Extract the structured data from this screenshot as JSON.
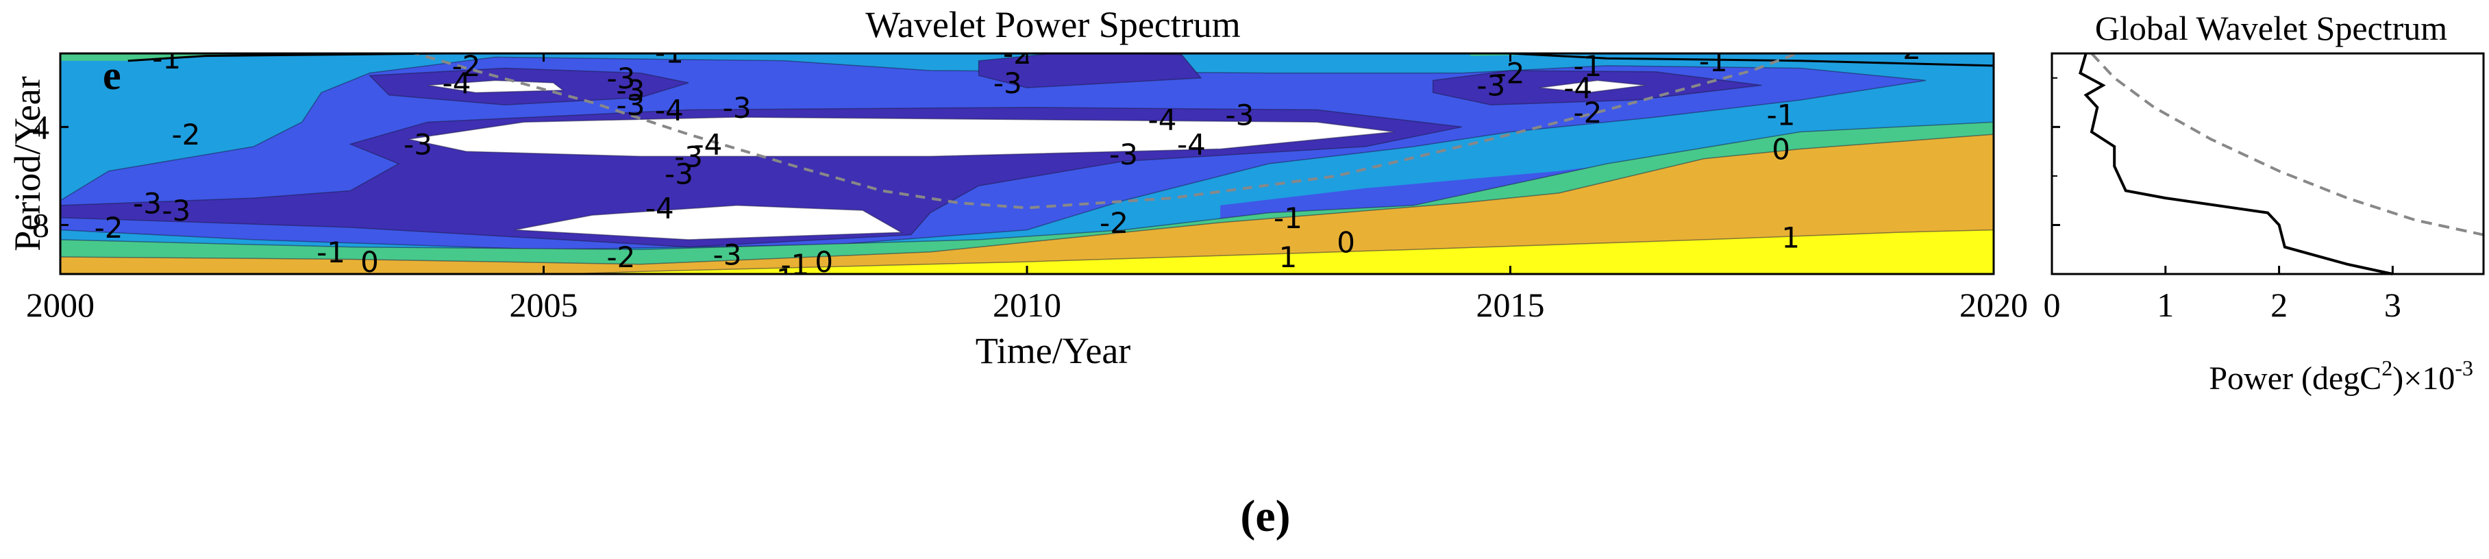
{
  "panel_tag": "e",
  "caption": "(e)",
  "colors": {
    "level_-4": "#ffffff",
    "level_-3": "#3f2fb3",
    "level_-2": "#3f58e8",
    "level_-1": "#1e9fe0",
    "level_0": "#47c98b",
    "level_1": "#e8b135",
    "level_2": "#ffff17",
    "coi": "#888888",
    "contour": "#000000"
  },
  "chart_data": [
    {
      "type": "heatmap",
      "title": "Wavelet Power Spectrum",
      "xlabel": "Time/Year",
      "ylabel": "Period/Year",
      "xlim": [
        2000,
        2020
      ],
      "ylim": [
        1,
        10
      ],
      "y_reversed": true,
      "x_ticks": [
        "2000",
        "2005",
        "2010",
        "2015",
        "2020"
      ],
      "y_ticks": [
        "4",
        "8"
      ],
      "contour_levels": [
        -4,
        -3,
        -2,
        -1,
        0,
        1
      ],
      "contour_labels": [
        {
          "text": "-1",
          "x": 2001.1,
          "y": 1.3
        },
        {
          "text": "-1",
          "x": 2006.3,
          "y": 1.05
        },
        {
          "text": "-2",
          "x": 2009.9,
          "y": 1.1
        },
        {
          "text": "-3",
          "x": 2009.8,
          "y": 2.3
        },
        {
          "text": "-2",
          "x": 2019.1,
          "y": 0.9
        },
        {
          "text": "-1",
          "x": 2017.1,
          "y": 1.4
        },
        {
          "text": "-1",
          "x": 2015.8,
          "y": 1.6
        },
        {
          "text": "-2",
          "x": 2015.0,
          "y": 1.9
        },
        {
          "text": "-3",
          "x": 2014.8,
          "y": 2.4
        },
        {
          "text": "-4",
          "x": 2015.7,
          "y": 2.5
        },
        {
          "text": "-2",
          "x": 2015.8,
          "y": 3.5
        },
        {
          "text": "-1",
          "x": 2017.8,
          "y": 3.6
        },
        {
          "text": "0",
          "x": 2017.8,
          "y": 5.0
        },
        {
          "text": "1",
          "x": 2017.9,
          "y": 8.6
        },
        {
          "text": "-2",
          "x": 2004.2,
          "y": 1.6
        },
        {
          "text": "-4",
          "x": 2004.1,
          "y": 2.3
        },
        {
          "text": "-3",
          "x": 2005.8,
          "y": 2.1
        },
        {
          "text": "-3",
          "x": 2005.9,
          "y": 2.6
        },
        {
          "text": "-3",
          "x": 2005.9,
          "y": 3.2
        },
        {
          "text": "-4",
          "x": 2006.3,
          "y": 3.4
        },
        {
          "text": "-3",
          "x": 2007.0,
          "y": 3.3
        },
        {
          "text": "-2",
          "x": 2001.3,
          "y": 4.4
        },
        {
          "text": "-3",
          "x": 2003.7,
          "y": 4.8
        },
        {
          "text": "-4",
          "x": 2006.7,
          "y": 4.8
        },
        {
          "text": "-3",
          "x": 2006.5,
          "y": 5.3
        },
        {
          "text": "-3",
          "x": 2006.4,
          "y": 6.0
        },
        {
          "text": "-4",
          "x": 2011.4,
          "y": 3.8
        },
        {
          "text": "-3",
          "x": 2012.2,
          "y": 3.6
        },
        {
          "text": "-4",
          "x": 2011.7,
          "y": 4.8
        },
        {
          "text": "-3",
          "x": 2011.0,
          "y": 5.2
        },
        {
          "text": "-3",
          "x": 2000.9,
          "y": 7.2
        },
        {
          "text": "-3",
          "x": 2001.2,
          "y": 7.5
        },
        {
          "text": "-2",
          "x": 2000.5,
          "y": 8.2
        },
        {
          "text": "-4",
          "x": 2006.2,
          "y": 7.4
        },
        {
          "text": "-2",
          "x": 2010.9,
          "y": 8.0
        },
        {
          "text": "-1",
          "x": 2002.8,
          "y": 9.2
        },
        {
          "text": "0",
          "x": 2003.2,
          "y": 9.6
        },
        {
          "text": "-2",
          "x": 2005.8,
          "y": 9.4
        },
        {
          "text": "-3",
          "x": 2006.9,
          "y": 9.3
        },
        {
          "text": "-1",
          "x": 2007.6,
          "y": 9.7
        },
        {
          "text": "0",
          "x": 2007.9,
          "y": 9.6
        },
        {
          "text": "1",
          "x": 2007.5,
          "y": 10.3
        },
        {
          "text": "-1",
          "x": 2012.7,
          "y": 7.8
        },
        {
          "text": "0",
          "x": 2013.3,
          "y": 8.8
        },
        {
          "text": "1",
          "x": 2012.7,
          "y": 9.4
        }
      ],
      "coi": {
        "x": [
          2002.8,
          2004.2,
          2005.5,
          2006.5,
          2007.6,
          2008.5,
          2009.3,
          2010.0,
          2011.5,
          2013.2,
          2014.8,
          2016.0,
          2017.5,
          2018.3
        ],
        "y": [
          0.0,
          1.6,
          3.0,
          4.3,
          5.6,
          6.6,
          7.1,
          7.3,
          6.9,
          6.0,
          4.5,
          3.3,
          1.7,
          0.5
        ]
      },
      "regions": [
        {
          "level": -1,
          "poly": [
            [
              2000,
              1.2
            ],
            [
              2000.5,
              0.9
            ],
            [
              2004.0,
              0.7
            ],
            [
              2008.0,
              0.25
            ],
            [
              2015.0,
              0.3
            ],
            [
              2018.5,
              0.3
            ],
            [
              2020,
              0.25
            ],
            [
              2020,
              3.8
            ],
            [
              2018.0,
              4.6
            ],
            [
              2015.5,
              5.8
            ],
            [
              2013.5,
              6.5
            ],
            [
              2012.0,
              7.2
            ],
            [
              2012.0,
              10.3
            ],
            [
              2000,
              10.3
            ]
          ]
        },
        {
          "level": -2,
          "poly": [
            [
              2000,
              7.0
            ],
            [
              2000.5,
              5.8
            ],
            [
              2002.0,
              4.8
            ],
            [
              2002.5,
              3.8
            ],
            [
              2002.7,
              2.6
            ],
            [
              2003.2,
              1.8
            ],
            [
              2004.5,
              1.15
            ],
            [
              2007.5,
              1.3
            ],
            [
              2009.0,
              1.7
            ],
            [
              2012.5,
              1.8
            ],
            [
              2014.5,
              1.8
            ],
            [
              2016.0,
              1.5
            ],
            [
              2018.0,
              1.6
            ],
            [
              2019.3,
              2.1
            ],
            [
              2018.0,
              2.9
            ],
            [
              2016.5,
              3.6
            ],
            [
              2015.0,
              4.2
            ],
            [
              2014.0,
              4.8
            ],
            [
              2012.5,
              5.5
            ],
            [
              2011.0,
              7.0
            ],
            [
              2010.0,
              8.2
            ],
            [
              2008.0,
              8.8
            ],
            [
              2005.0,
              9.0
            ],
            [
              2002.0,
              8.6
            ],
            [
              2000,
              8.2
            ]
          ]
        },
        {
          "level": -3,
          "poly": [
            [
              2000,
              7.2
            ],
            [
              2002.0,
              6.9
            ],
            [
              2003.0,
              6.6
            ],
            [
              2003.5,
              5.5
            ],
            [
              2003.0,
              4.7
            ],
            [
              2003.8,
              3.8
            ],
            [
              2006.5,
              3.3
            ],
            [
              2010.0,
              3.2
            ],
            [
              2013.0,
              3.3
            ],
            [
              2014.5,
              4.0
            ],
            [
              2013.5,
              4.8
            ],
            [
              2011.0,
              5.4
            ],
            [
              2009.5,
              6.4
            ],
            [
              2009.0,
              7.5
            ],
            [
              2008.8,
              8.4
            ],
            [
              2006.5,
              8.9
            ],
            [
              2003.0,
              8.1
            ],
            [
              2000,
              7.7
            ]
          ]
        },
        {
          "level": -3,
          "poly": [
            [
              2003.2,
              1.9
            ],
            [
              2004.6,
              1.6
            ],
            [
              2006.0,
              1.8
            ],
            [
              2006.5,
              2.2
            ],
            [
              2006.0,
              2.8
            ],
            [
              2004.6,
              3.1
            ],
            [
              2003.4,
              2.7
            ]
          ]
        },
        {
          "level": -3,
          "poly": [
            [
              2014.2,
              2.1
            ],
            [
              2015.0,
              1.7
            ],
            [
              2016.5,
              1.75
            ],
            [
              2017.6,
              2.3
            ],
            [
              2016.3,
              2.9
            ],
            [
              2014.8,
              3.1
            ],
            [
              2014.2,
              2.6
            ]
          ]
        },
        {
          "level": -3,
          "poly": [
            [
              2009.5,
              1.3
            ],
            [
              2010.4,
              0.95
            ],
            [
              2011.6,
              1.05
            ],
            [
              2011.8,
              2.0
            ],
            [
              2010.0,
              2.4
            ],
            [
              2009.5,
              1.9
            ]
          ]
        },
        {
          "level": 0,
          "poly": [
            [
              2000,
              8.6
            ],
            [
              2003.0,
              8.9
            ],
            [
              2006.0,
              9.0
            ],
            [
              2009.5,
              8.6
            ],
            [
              2011.0,
              8.2
            ],
            [
              2012.5,
              7.5
            ],
            [
              2014.0,
              7.2
            ],
            [
              2016.0,
              5.5
            ],
            [
              2018.0,
              4.2
            ],
            [
              2020,
              3.8
            ],
            [
              2020,
              10.3
            ],
            [
              2000,
              10.3
            ]
          ]
        },
        {
          "level": -4,
          "poly": [
            [
              2003.8,
              2.3
            ],
            [
              2004.5,
              2.1
            ],
            [
              2005.1,
              2.2
            ],
            [
              2005.2,
              2.5
            ],
            [
              2004.3,
              2.6
            ]
          ]
        },
        {
          "level": -4,
          "poly": [
            [
              2015.3,
              2.4
            ],
            [
              2015.9,
              2.1
            ],
            [
              2016.4,
              2.3
            ],
            [
              2015.8,
              2.6
            ]
          ]
        },
        {
          "level": -4,
          "poly": [
            [
              2003.6,
              4.5
            ],
            [
              2004.8,
              3.8
            ],
            [
              2007.0,
              3.6
            ],
            [
              2010.0,
              3.7
            ],
            [
              2013.0,
              3.8
            ],
            [
              2013.8,
              4.2
            ],
            [
              2012.0,
              4.9
            ],
            [
              2009.0,
              5.2
            ],
            [
              2006.0,
              5.2
            ],
            [
              2004.2,
              5.0
            ]
          ]
        },
        {
          "level": -4,
          "poly": [
            [
              2004.7,
              8.2
            ],
            [
              2005.5,
              7.6
            ],
            [
              2007.0,
              7.2
            ],
            [
              2008.3,
              7.4
            ],
            [
              2008.7,
              8.3
            ],
            [
              2006.5,
              8.6
            ]
          ]
        },
        {
          "level": 1,
          "poly": [
            [
              2000,
              9.3
            ],
            [
              2003.0,
              9.4
            ],
            [
              2006.0,
              9.6
            ],
            [
              2009.0,
              9.1
            ],
            [
              2011.0,
              8.3
            ],
            [
              2012.0,
              7.9
            ],
            [
              2014.5,
              7.1
            ],
            [
              2015.5,
              6.7
            ],
            [
              2017.0,
              5.3
            ],
            [
              2018.0,
              4.9
            ],
            [
              2020,
              4.3
            ],
            [
              2020,
              10.3
            ],
            [
              2000,
              10.3
            ]
          ]
        },
        {
          "level": 2,
          "poly": [
            [
              2003.0,
              10.3
            ],
            [
              2006.0,
              9.9
            ],
            [
              2010.0,
              9.5
            ],
            [
              2014.0,
              9.0
            ],
            [
              2017.0,
              8.6
            ],
            [
              2019.0,
              8.3
            ],
            [
              2020,
              8.2
            ],
            [
              2020,
              10.3
            ]
          ]
        }
      ]
    },
    {
      "type": "line",
      "title": "Global Wavelet Spectrum",
      "xlabel": "Power (degC",
      "xlabel_sup1": "2",
      "xlabel_mid": ")×10",
      "xlabel_sup2": "-3",
      "x_ticks": [
        "0",
        "1",
        "2",
        "3"
      ],
      "xlim": [
        0,
        3.8
      ],
      "ylim": [
        1,
        10
      ],
      "y_reversed": true,
      "series": [
        {
          "role": "power",
          "x": [
            0.3,
            0.25,
            0.45,
            0.3,
            0.4,
            0.35,
            0.55,
            0.55,
            0.65,
            1.0,
            1.9,
            2.0,
            2.05,
            2.6,
            3.0
          ],
          "y": [
            1.0,
            1.8,
            2.3,
            2.7,
            3.2,
            4.2,
            4.8,
            5.6,
            6.6,
            6.9,
            7.5,
            8.0,
            8.9,
            9.6,
            10.3
          ]
        },
        {
          "role": "significance",
          "x": [
            0.35,
            0.55,
            0.9,
            1.4,
            2.0,
            2.6,
            3.2,
            3.8
          ],
          "y": [
            1.0,
            2.0,
            3.2,
            4.5,
            5.8,
            6.9,
            7.8,
            8.4
          ]
        }
      ]
    }
  ]
}
